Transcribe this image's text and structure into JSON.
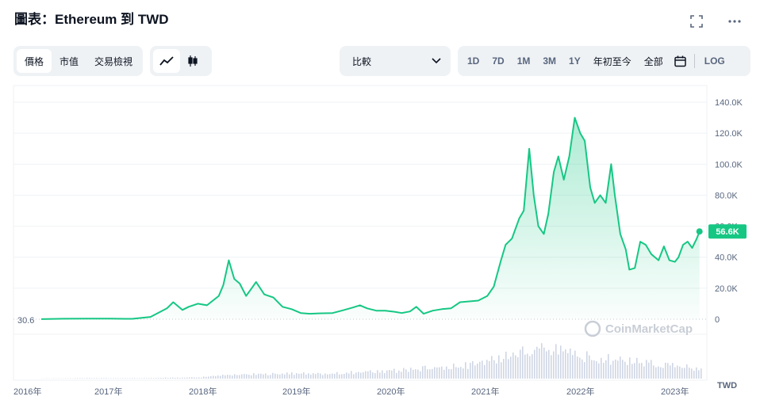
{
  "title": "圖表：Ethereum 到 TWD",
  "icons": {
    "fullscreen": "fullscreen-icon",
    "more": "more-icon",
    "line": "line-chart-icon",
    "candle": "candlestick-icon",
    "calendar": "calendar-icon",
    "chevron": "chevron-down-icon"
  },
  "view_tabs": [
    "價格",
    "市值",
    "交易檢視"
  ],
  "compare_label": "比較",
  "ranges": [
    "1D",
    "7D",
    "1M",
    "3M",
    "1Y",
    "年初至今",
    "全部"
  ],
  "log_label": "LOG",
  "watermark": "CoinMarketCap",
  "currency": "TWD",
  "colors": {
    "line": "#16c784",
    "badge": "#16c784",
    "volume": "#cfd6e4"
  },
  "chart_data": {
    "type": "line",
    "title": "",
    "xlabel": "",
    "ylabel": "",
    "x_ticks": [
      "2016年",
      "2017年",
      "2018年",
      "2019年",
      "2020年",
      "2021年",
      "2022年",
      "2023年"
    ],
    "y_ticks": [
      "0",
      "20.0K",
      "40.0K",
      "60.0K",
      "80.0K",
      "100.0K",
      "120.0K",
      "140.0K"
    ],
    "ylim": [
      0,
      140000
    ],
    "xlim": [
      2016.0,
      2023.25
    ],
    "start_label": "30.6",
    "current_label": "56.6K",
    "current_value": 56600,
    "grid": true,
    "series": [
      {
        "points": [
          [
            2016.0,
            30.6
          ],
          [
            2016.25,
            300
          ],
          [
            2016.5,
            350
          ],
          [
            2016.75,
            360
          ],
          [
            2016.92,
            250
          ],
          [
            2017.0,
            250
          ],
          [
            2017.2,
            1500
          ],
          [
            2017.38,
            7000
          ],
          [
            2017.45,
            11000
          ],
          [
            2017.55,
            6000
          ],
          [
            2017.62,
            8000
          ],
          [
            2017.72,
            10000
          ],
          [
            2017.82,
            9000
          ],
          [
            2017.95,
            15000
          ],
          [
            2018.0,
            22000
          ],
          [
            2018.06,
            38000
          ],
          [
            2018.12,
            26000
          ],
          [
            2018.18,
            23000
          ],
          [
            2018.25,
            15000
          ],
          [
            2018.3,
            19000
          ],
          [
            2018.36,
            24000
          ],
          [
            2018.45,
            16000
          ],
          [
            2018.55,
            14000
          ],
          [
            2018.65,
            8000
          ],
          [
            2018.75,
            6500
          ],
          [
            2018.85,
            4000
          ],
          [
            2018.95,
            3500
          ],
          [
            2019.05,
            3800
          ],
          [
            2019.2,
            4000
          ],
          [
            2019.3,
            5500
          ],
          [
            2019.42,
            7500
          ],
          [
            2019.5,
            9000
          ],
          [
            2019.58,
            7000
          ],
          [
            2019.68,
            5500
          ],
          [
            2019.78,
            5500
          ],
          [
            2019.88,
            4800
          ],
          [
            2019.96,
            4000
          ],
          [
            2020.05,
            5000
          ],
          [
            2020.12,
            8000
          ],
          [
            2020.2,
            3500
          ],
          [
            2020.3,
            5500
          ],
          [
            2020.4,
            6500
          ],
          [
            2020.5,
            7000
          ],
          [
            2020.6,
            11000
          ],
          [
            2020.7,
            11500
          ],
          [
            2020.8,
            12000
          ],
          [
            2020.9,
            15000
          ],
          [
            2020.97,
            21000
          ],
          [
            2021.05,
            38000
          ],
          [
            2021.1,
            48000
          ],
          [
            2021.17,
            52000
          ],
          [
            2021.25,
            65000
          ],
          [
            2021.3,
            70000
          ],
          [
            2021.36,
            110000
          ],
          [
            2021.41,
            80000
          ],
          [
            2021.46,
            60000
          ],
          [
            2021.52,
            55000
          ],
          [
            2021.57,
            68000
          ],
          [
            2021.63,
            95000
          ],
          [
            2021.68,
            105000
          ],
          [
            2021.74,
            90000
          ],
          [
            2021.8,
            105000
          ],
          [
            2021.86,
            130000
          ],
          [
            2021.92,
            120000
          ],
          [
            2021.97,
            115000
          ],
          [
            2022.03,
            85000
          ],
          [
            2022.08,
            75000
          ],
          [
            2022.14,
            80000
          ],
          [
            2022.2,
            75000
          ],
          [
            2022.26,
            100000
          ],
          [
            2022.3,
            80000
          ],
          [
            2022.36,
            55000
          ],
          [
            2022.42,
            45000
          ],
          [
            2022.46,
            32000
          ],
          [
            2022.52,
            33000
          ],
          [
            2022.58,
            50000
          ],
          [
            2022.64,
            48000
          ],
          [
            2022.7,
            42000
          ],
          [
            2022.78,
            38000
          ],
          [
            2022.84,
            47000
          ],
          [
            2022.9,
            38000
          ],
          [
            2022.96,
            37000
          ],
          [
            2023.0,
            40000
          ],
          [
            2023.05,
            48000
          ],
          [
            2023.1,
            50000
          ],
          [
            2023.15,
            46000
          ],
          [
            2023.2,
            52000
          ],
          [
            2023.23,
            56600
          ]
        ]
      }
    ],
    "volume": [
      [
        2016.0,
        0.5
      ],
      [
        2016.25,
        0.5
      ],
      [
        2016.5,
        1
      ],
      [
        2016.75,
        1
      ],
      [
        2017.0,
        1
      ],
      [
        2017.25,
        1.5
      ],
      [
        2017.5,
        2
      ],
      [
        2017.75,
        3
      ],
      [
        2018.0,
        8
      ],
      [
        2018.25,
        9
      ],
      [
        2018.5,
        10
      ],
      [
        2018.75,
        11
      ],
      [
        2019.0,
        10
      ],
      [
        2019.25,
        11
      ],
      [
        2019.5,
        14
      ],
      [
        2019.75,
        15
      ],
      [
        2020.0,
        18
      ],
      [
        2020.25,
        22
      ],
      [
        2020.5,
        25
      ],
      [
        2020.75,
        30
      ],
      [
        2021.0,
        40
      ],
      [
        2021.25,
        55
      ],
      [
        2021.5,
        65
      ],
      [
        2021.75,
        55
      ],
      [
        2022.0,
        45
      ],
      [
        2022.25,
        40
      ],
      [
        2022.5,
        35
      ],
      [
        2022.75,
        30
      ],
      [
        2023.0,
        25
      ],
      [
        2023.25,
        20
      ]
    ]
  }
}
